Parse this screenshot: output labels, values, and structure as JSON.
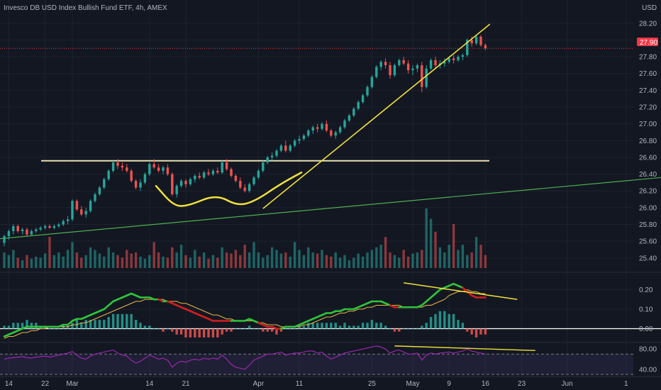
{
  "header": {
    "title": "Invesco DB USD Index Bullish Fund ETF, 4h, AMEX",
    "currency": "USD"
  },
  "colors": {
    "background": "#131722",
    "grid": "#1e222d",
    "up": "#26a69a",
    "down": "#ef5350",
    "text": "#b2b5be",
    "trendline": "#f0e23a",
    "resistance": "#e8e0b0",
    "moving_average": "#4caf50",
    "rsi": "#9c27b0",
    "macd_signal": "#e6b84a",
    "price_tag": "#f23645"
  },
  "chart_data": [
    {
      "type": "candlestick",
      "panel": "price",
      "title": "Invesco DB USD Index Bullish Fund ETF, 4h, AMEX",
      "ylim": [
        25.28,
        28.3
      ],
      "yticks": [
        25.4,
        25.6,
        25.8,
        26.0,
        26.2,
        26.4,
        26.6,
        26.8,
        27.0,
        27.2,
        27.4,
        27.6,
        27.8,
        28.0,
        28.2
      ],
      "last_price": 27.9,
      "last_price_label": "27.90",
      "x_ticks": [
        {
          "label": "14",
          "bar": 1
        },
        {
          "label": "22",
          "bar": 9
        },
        {
          "label": "Mar",
          "bar": 15
        },
        {
          "label": "14",
          "bar": 32
        },
        {
          "label": "21",
          "bar": 40
        },
        {
          "label": "Apr",
          "bar": 56
        },
        {
          "label": "11",
          "bar": 65
        },
        {
          "label": "25",
          "bar": 81
        },
        {
          "label": "May",
          "bar": 90
        },
        {
          "label": "9",
          "bar": 98
        },
        {
          "label": "16",
          "bar": 106
        },
        {
          "label": "23",
          "bar": 114
        },
        {
          "label": "Jun",
          "bar": 124
        },
        {
          "label": "1",
          "bar": 137
        }
      ],
      "candles": [
        [
          25.58,
          25.68,
          25.54,
          25.66
        ],
        [
          25.66,
          25.74,
          25.62,
          25.72
        ],
        [
          25.72,
          25.8,
          25.68,
          25.78
        ],
        [
          25.78,
          25.8,
          25.7,
          25.72
        ],
        [
          25.72,
          25.76,
          25.68,
          25.74
        ],
        [
          25.74,
          25.76,
          25.66,
          25.68
        ],
        [
          25.68,
          25.74,
          25.66,
          25.72
        ],
        [
          25.72,
          25.76,
          25.7,
          25.74
        ],
        [
          25.74,
          25.78,
          25.72,
          25.76
        ],
        [
          25.76,
          25.8,
          25.74,
          25.78
        ],
        [
          25.78,
          25.8,
          25.75,
          25.76
        ],
        [
          25.76,
          25.8,
          25.74,
          25.78
        ],
        [
          25.78,
          25.82,
          25.76,
          25.8
        ],
        [
          25.8,
          25.86,
          25.78,
          25.84
        ],
        [
          25.84,
          25.9,
          25.8,
          25.86
        ],
        [
          25.86,
          26.1,
          25.84,
          26.08
        ],
        [
          26.08,
          26.1,
          25.96,
          25.98
        ],
        [
          25.98,
          26.02,
          25.9,
          25.92
        ],
        [
          25.92,
          26.0,
          25.88,
          25.96
        ],
        [
          25.96,
          26.1,
          25.94,
          26.08
        ],
        [
          26.08,
          26.18,
          26.06,
          26.16
        ],
        [
          26.16,
          26.26,
          26.14,
          26.24
        ],
        [
          26.24,
          26.36,
          26.22,
          26.34
        ],
        [
          26.34,
          26.46,
          26.32,
          26.44
        ],
        [
          26.44,
          26.56,
          26.42,
          26.54
        ],
        [
          26.54,
          26.58,
          26.46,
          26.5
        ],
        [
          26.5,
          26.54,
          26.44,
          26.48
        ],
        [
          26.48,
          26.52,
          26.42,
          26.44
        ],
        [
          26.44,
          26.46,
          26.3,
          26.32
        ],
        [
          26.32,
          26.34,
          26.22,
          26.24
        ],
        [
          26.24,
          26.34,
          26.2,
          26.3
        ],
        [
          26.3,
          26.42,
          26.28,
          26.4
        ],
        [
          26.4,
          26.54,
          26.38,
          26.52
        ],
        [
          26.52,
          26.58,
          26.46,
          26.48
        ],
        [
          26.48,
          26.52,
          26.42,
          26.44
        ],
        [
          26.44,
          26.5,
          26.4,
          26.48
        ],
        [
          26.48,
          26.52,
          26.38,
          26.4
        ],
        [
          26.4,
          26.42,
          26.14,
          26.16
        ],
        [
          26.16,
          26.28,
          26.12,
          26.26
        ],
        [
          26.26,
          26.34,
          26.24,
          26.32
        ],
        [
          26.32,
          26.34,
          26.24,
          26.28
        ],
        [
          26.28,
          26.36,
          26.26,
          26.34
        ],
        [
          26.34,
          26.4,
          26.3,
          26.38
        ],
        [
          26.38,
          26.42,
          26.34,
          26.36
        ],
        [
          26.36,
          26.44,
          26.34,
          26.42
        ],
        [
          26.42,
          26.46,
          26.38,
          26.4
        ],
        [
          26.4,
          26.46,
          26.38,
          26.44
        ],
        [
          26.44,
          26.48,
          26.4,
          26.42
        ],
        [
          26.42,
          26.56,
          26.4,
          26.54
        ],
        [
          26.54,
          26.58,
          26.44,
          26.46
        ],
        [
          26.46,
          26.48,
          26.36,
          26.38
        ],
        [
          26.38,
          26.4,
          26.3,
          26.32
        ],
        [
          26.32,
          26.36,
          26.22,
          26.24
        ],
        [
          26.24,
          26.28,
          26.18,
          26.2
        ],
        [
          26.2,
          26.3,
          26.18,
          26.28
        ],
        [
          26.28,
          26.38,
          26.26,
          26.36
        ],
        [
          26.36,
          26.46,
          26.34,
          26.44
        ],
        [
          26.44,
          26.56,
          26.42,
          26.54
        ],
        [
          26.54,
          26.62,
          26.52,
          26.6
        ],
        [
          26.6,
          26.66,
          26.56,
          26.62
        ],
        [
          26.62,
          26.7,
          26.6,
          26.68
        ],
        [
          26.68,
          26.76,
          26.66,
          26.74
        ],
        [
          26.74,
          26.8,
          26.66,
          26.68
        ],
        [
          26.68,
          26.76,
          26.66,
          26.74
        ],
        [
          26.74,
          26.82,
          26.72,
          26.8
        ],
        [
          26.8,
          26.86,
          26.76,
          26.82
        ],
        [
          26.82,
          26.88,
          26.8,
          26.86
        ],
        [
          26.86,
          26.94,
          26.84,
          26.92
        ],
        [
          26.92,
          26.98,
          26.88,
          26.96
        ],
        [
          26.96,
          27.0,
          26.9,
          26.94
        ],
        [
          26.94,
          27.02,
          26.92,
          27.0
        ],
        [
          27.0,
          27.04,
          26.9,
          26.92
        ],
        [
          26.92,
          26.94,
          26.84,
          26.86
        ],
        [
          26.86,
          26.92,
          26.82,
          26.9
        ],
        [
          26.9,
          26.98,
          26.88,
          26.96
        ],
        [
          26.96,
          27.06,
          26.94,
          27.04
        ],
        [
          27.04,
          27.12,
          27.02,
          27.1
        ],
        [
          27.1,
          27.2,
          27.08,
          27.18
        ],
        [
          27.18,
          27.28,
          27.16,
          27.26
        ],
        [
          27.26,
          27.36,
          27.24,
          27.34
        ],
        [
          27.34,
          27.46,
          27.32,
          27.44
        ],
        [
          27.44,
          27.58,
          27.42,
          27.56
        ],
        [
          27.56,
          27.7,
          27.54,
          27.68
        ],
        [
          27.68,
          27.76,
          27.64,
          27.74
        ],
        [
          27.74,
          27.78,
          27.66,
          27.7
        ],
        [
          27.7,
          27.74,
          27.54,
          27.58
        ],
        [
          27.58,
          27.72,
          27.56,
          27.7
        ],
        [
          27.7,
          27.78,
          27.68,
          27.76
        ],
        [
          27.76,
          27.8,
          27.7,
          27.72
        ],
        [
          27.72,
          27.76,
          27.6,
          27.64
        ],
        [
          27.64,
          27.7,
          27.58,
          27.66
        ],
        [
          27.66,
          27.72,
          27.62,
          27.7
        ],
        [
          27.7,
          27.74,
          27.38,
          27.44
        ],
        [
          27.44,
          27.7,
          27.42,
          27.66
        ],
        [
          27.66,
          27.78,
          27.64,
          27.76
        ],
        [
          27.76,
          27.8,
          27.66,
          27.7
        ],
        [
          27.7,
          27.76,
          27.66,
          27.72
        ],
        [
          27.72,
          27.78,
          27.68,
          27.74
        ],
        [
          27.74,
          27.8,
          27.72,
          27.78
        ],
        [
          27.78,
          27.82,
          27.72,
          27.76
        ],
        [
          27.76,
          27.82,
          27.74,
          27.8
        ],
        [
          27.8,
          27.84,
          27.76,
          27.82
        ],
        [
          27.82,
          28.02,
          27.8,
          28.0
        ],
        [
          28.0,
          28.04,
          27.92,
          27.96
        ],
        [
          27.96,
          28.06,
          27.94,
          28.04
        ],
        [
          28.04,
          28.06,
          27.92,
          27.94
        ],
        [
          27.94,
          27.96,
          27.88,
          27.9
        ]
      ]
    },
    {
      "type": "bar",
      "panel": "volume",
      "values": [
        30,
        25,
        35,
        20,
        15,
        25,
        18,
        22,
        20,
        28,
        60,
        25,
        30,
        22,
        35,
        50,
        30,
        20,
        25,
        40,
        35,
        28,
        22,
        40,
        30,
        25,
        20,
        35,
        28,
        30,
        22,
        18,
        25,
        50,
        30,
        22,
        20,
        40,
        30,
        45,
        25,
        20,
        35,
        22,
        30,
        18,
        25,
        20,
        40,
        30,
        28,
        35,
        25,
        45,
        30,
        50,
        30,
        20,
        25,
        40,
        35,
        28,
        30,
        22,
        50,
        35,
        25,
        40,
        30,
        28,
        35,
        25,
        22,
        30,
        20,
        25,
        15,
        20,
        28,
        22,
        30,
        35,
        40,
        45,
        60,
        30,
        25,
        20,
        35,
        22,
        28,
        30,
        35,
        115,
        95,
        70,
        40,
        30,
        45,
        85,
        35,
        45,
        25,
        30,
        60,
        45,
        25
      ]
    },
    {
      "type": "line",
      "panel": "macd",
      "ylim": [
        -0.06,
        0.26
      ],
      "yticks": [
        0.0,
        0.1,
        0.2
      ],
      "macd": [
        -0.04,
        -0.03,
        -0.02,
        -0.01,
        0.0,
        0.01,
        0.01,
        0.01,
        0.01,
        0.01,
        0.01,
        0.01,
        0.01,
        0.02,
        0.02,
        0.04,
        0.05,
        0.05,
        0.06,
        0.07,
        0.08,
        0.09,
        0.1,
        0.12,
        0.14,
        0.15,
        0.16,
        0.17,
        0.18,
        0.17,
        0.16,
        0.16,
        0.16,
        0.15,
        0.15,
        0.14,
        0.14,
        0.13,
        0.12,
        0.11,
        0.1,
        0.09,
        0.08,
        0.07,
        0.06,
        0.05,
        0.04,
        0.04,
        0.04,
        0.04,
        0.04,
        0.04,
        0.04,
        0.04,
        0.05,
        0.04,
        0.03,
        0.02,
        0.01,
        0.01,
        0.0,
        0.0,
        0.01,
        0.01,
        0.01,
        0.02,
        0.03,
        0.04,
        0.05,
        0.06,
        0.07,
        0.08,
        0.08,
        0.09,
        0.09,
        0.1,
        0.1,
        0.1,
        0.11,
        0.12,
        0.13,
        0.14,
        0.14,
        0.14,
        0.13,
        0.12,
        0.11,
        0.11,
        0.11,
        0.11,
        0.11,
        0.11,
        0.12,
        0.14,
        0.16,
        0.18,
        0.2,
        0.21,
        0.22,
        0.23,
        0.22,
        0.21,
        0.19,
        0.17,
        0.16,
        0.16,
        0.16
      ],
      "signal": [
        -0.05,
        -0.04,
        -0.04,
        -0.03,
        -0.02,
        -0.02,
        -0.01,
        -0.01,
        0.0,
        0.0,
        0.01,
        0.01,
        0.01,
        0.01,
        0.01,
        0.02,
        0.02,
        0.03,
        0.03,
        0.04,
        0.05,
        0.06,
        0.07,
        0.08,
        0.09,
        0.1,
        0.11,
        0.12,
        0.13,
        0.14,
        0.14,
        0.15,
        0.15,
        0.15,
        0.15,
        0.15,
        0.14,
        0.14,
        0.14,
        0.13,
        0.13,
        0.12,
        0.11,
        0.1,
        0.09,
        0.08,
        0.07,
        0.07,
        0.06,
        0.05,
        0.05,
        0.04,
        0.04,
        0.04,
        0.04,
        0.04,
        0.03,
        0.03,
        0.02,
        0.02,
        0.02,
        0.01,
        0.01,
        0.01,
        0.01,
        0.01,
        0.02,
        0.02,
        0.03,
        0.04,
        0.05,
        0.06,
        0.06,
        0.07,
        0.08,
        0.08,
        0.09,
        0.09,
        0.1,
        0.1,
        0.11,
        0.11,
        0.12,
        0.12,
        0.12,
        0.12,
        0.12,
        0.12,
        0.11,
        0.11,
        0.11,
        0.11,
        0.11,
        0.12,
        0.12,
        0.13,
        0.14,
        0.15,
        0.17,
        0.18,
        0.19,
        0.19,
        0.2,
        0.19,
        0.19,
        0.18,
        0.18
      ]
    },
    {
      "type": "line",
      "panel": "rsi",
      "ylim": [
        30,
        90
      ],
      "yticks": [
        40.0,
        80.0
      ],
      "bands": [
        70,
        30
      ],
      "values": [
        60,
        62,
        63,
        64,
        65,
        63,
        62,
        64,
        65,
        66,
        64,
        66,
        68,
        70,
        72,
        75,
        68,
        62,
        60,
        66,
        70,
        72,
        74,
        76,
        78,
        72,
        68,
        66,
        58,
        52,
        56,
        62,
        68,
        64,
        60,
        62,
        58,
        44,
        52,
        56,
        54,
        58,
        60,
        58,
        62,
        60,
        62,
        60,
        68,
        60,
        50,
        44,
        42,
        40,
        48,
        58,
        62,
        66,
        70,
        70,
        72,
        74,
        68,
        70,
        72,
        72,
        74,
        76,
        76,
        72,
        74,
        66,
        60,
        64,
        68,
        72,
        74,
        76,
        78,
        80,
        82,
        84,
        86,
        84,
        80,
        72,
        76,
        78,
        74,
        70,
        70,
        72,
        58,
        68,
        72,
        70,
        72,
        73,
        74,
        72,
        74,
        76,
        80,
        76,
        74,
        72,
        70
      ]
    }
  ],
  "drawings": {
    "moving_average": [
      25.63,
      26.36
    ],
    "resistance_level": 26.56,
    "lower_trendline": [
      {
        "bar": 57,
        "price": 25.99
      },
      {
        "bar": 107,
        "price": 28.19
      }
    ],
    "rounding_bottom": [
      26.26,
      26.02,
      26.02,
      26.16,
      26.02,
      26.08,
      26.28,
      26.42
    ]
  }
}
